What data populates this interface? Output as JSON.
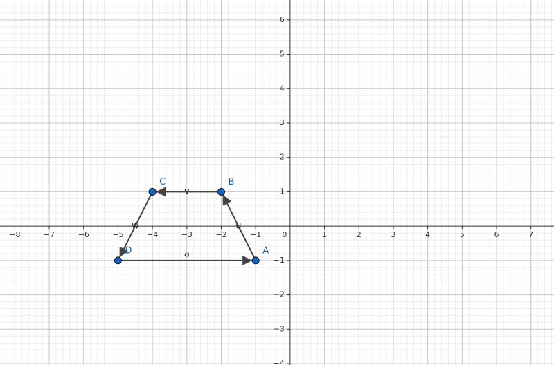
{
  "chart_data": {
    "type": "vectors",
    "xlim": [
      -8.43,
      7.67
    ],
    "ylim": [
      -4.04,
      6.58
    ],
    "xticks": [
      {
        "value": -8,
        "label": "−8"
      },
      {
        "value": -7,
        "label": "−7"
      },
      {
        "value": -6,
        "label": "−6"
      },
      {
        "value": -5,
        "label": "−5"
      },
      {
        "value": -4,
        "label": "−4"
      },
      {
        "value": -3,
        "label": "−3"
      },
      {
        "value": -2,
        "label": "−2"
      },
      {
        "value": -1,
        "label": "−1"
      },
      0,
      1,
      2,
      3,
      4,
      5,
      6,
      7
    ],
    "yticks": [
      {
        "value": -4,
        "label": "−4"
      },
      {
        "value": -3,
        "label": "−3"
      },
      {
        "value": -2,
        "label": "−2"
      },
      {
        "value": -1,
        "label": "−1"
      },
      1,
      2,
      3,
      4,
      5,
      6
    ],
    "grid": true,
    "point_color": "#1565c0",
    "vector_color": "#444444",
    "points": {
      "names": [
        "A",
        "B",
        "C",
        "D"
      ],
      "x": [
        -1,
        -2,
        -4,
        -5
      ],
      "y": [
        -1,
        1,
        1,
        -1
      ]
    },
    "vectors": [
      {
        "name": "a",
        "x": [
          -5,
          -1
        ],
        "y": [
          -1,
          -1
        ]
      },
      {
        "name": "u",
        "x": [
          -1,
          -2
        ],
        "y": [
          -1,
          1
        ]
      },
      {
        "name": "v",
        "x": [
          -2,
          -4
        ],
        "y": [
          1,
          1
        ]
      },
      {
        "name": "w",
        "x": [
          -4,
          -5
        ],
        "y": [
          1,
          -1
        ]
      }
    ]
  }
}
